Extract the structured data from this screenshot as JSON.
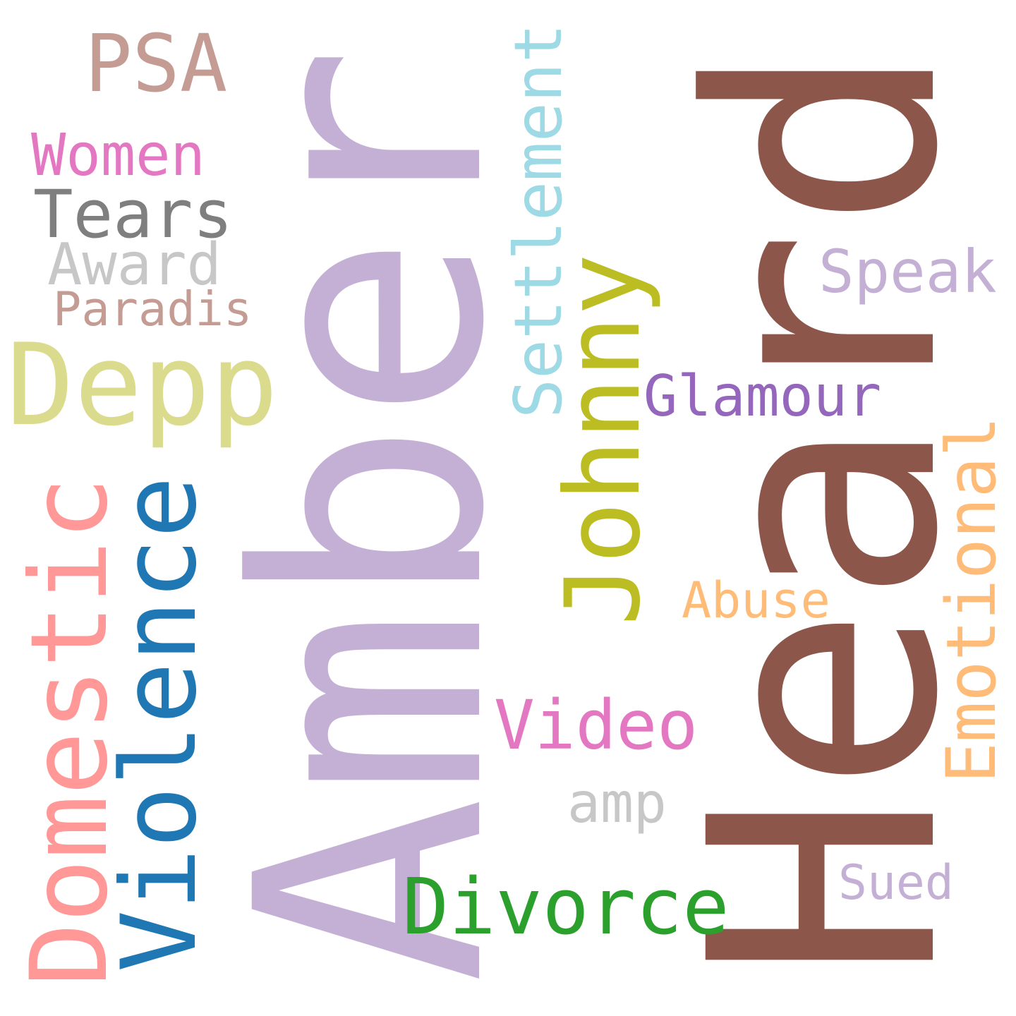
{
  "words": [
    {
      "text": "Amber",
      "color": "#c5b0d5",
      "rotated": true
    },
    {
      "text": "Heard",
      "color": "#8c564b",
      "rotated": true
    },
    {
      "text": "Domestic",
      "color": "#ff9896",
      "rotated": true
    },
    {
      "text": "Violence",
      "color": "#1f77b4",
      "rotated": true
    },
    {
      "text": "Johnny",
      "color": "#bcbd22",
      "rotated": true
    },
    {
      "text": "Depp",
      "color": "#dbdb8d",
      "rotated": false
    },
    {
      "text": "Settlement",
      "color": "#9edae5",
      "rotated": true
    },
    {
      "text": "Divorce",
      "color": "#2ca02c",
      "rotated": false
    },
    {
      "text": "Emotional",
      "color": "#ffbb78",
      "rotated": true
    },
    {
      "text": "PSA",
      "color": "#c49c94",
      "rotated": false
    },
    {
      "text": "Glamour",
      "color": "#9467bd",
      "rotated": false
    },
    {
      "text": "Video",
      "color": "#e377c2",
      "rotated": false
    },
    {
      "text": "Speak",
      "color": "#c5b0d5",
      "rotated": false
    },
    {
      "text": "Tears",
      "color": "#7f7f7f",
      "rotated": false
    },
    {
      "text": "Women",
      "color": "#e377c2",
      "rotated": false
    },
    {
      "text": "Award",
      "color": "#c7c7c7",
      "rotated": false
    },
    {
      "text": "Abuse",
      "color": "#ffbb78",
      "rotated": false
    },
    {
      "text": "amp",
      "color": "#c7c7c7",
      "rotated": false
    },
    {
      "text": "Paradis",
      "color": "#c49c94",
      "rotated": false
    },
    {
      "text": "Sued",
      "color": "#c5b0d5",
      "rotated": false
    }
  ]
}
